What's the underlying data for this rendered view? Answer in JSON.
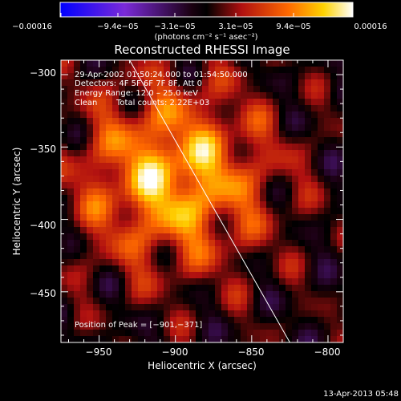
{
  "chart_data": {
    "type": "heatmap",
    "title": "Reconstructed RHESSI Image",
    "xlabel": "Heliocentric X (arcsec)",
    "ylabel": "Heliocentric Y (arcsec)",
    "xlim": [
      -975,
      -790
    ],
    "ylim": [
      -485,
      -290
    ],
    "x_ticks": [
      -950,
      -900,
      -850,
      -800
    ],
    "x_tick_labels": [
      "−950",
      "−900",
      "−850",
      "−800"
    ],
    "y_ticks": [
      -300,
      -350,
      -400,
      -450
    ],
    "y_tick_labels": [
      "−300",
      "−350",
      "−400",
      "−450"
    ],
    "colorbar": {
      "min": -0.00016,
      "max": 0.00016,
      "tick_labels": [
        "−0.00016",
        "−9.4e−05",
        "−3.1e−05",
        "3.1e−05",
        "9.4e−05",
        "0.00016"
      ],
      "unit_label": "(photons cm⁻² s⁻¹ asec⁻²)"
    },
    "annotations": {
      "time_range": "29-Apr-2002 01:50:24.000 to 01:54:50.000",
      "detectors": "Detectors: 4F 5F 6F 7F 8F, Att 0",
      "energy": "Energy Range: 12.0 – 25.0 keV",
      "algorithm": "Clean",
      "counts": "Total counts: 2.22E+03",
      "peak": "Position of Peak = [−901,−371]"
    },
    "peak": [
      -901,
      -371
    ],
    "limb_line": {
      "from": [
        -930,
        -290
      ],
      "to": [
        -825,
        -485
      ]
    },
    "footer": "13-Apr-2013 05:48"
  },
  "colors": {
    "background": "#000000",
    "text": "#ffffff",
    "colormap": [
      "#0000ff",
      "#8a2be2",
      "#000000",
      "#b01010",
      "#ff6a00",
      "#ffd200",
      "#ffffff"
    ]
  }
}
